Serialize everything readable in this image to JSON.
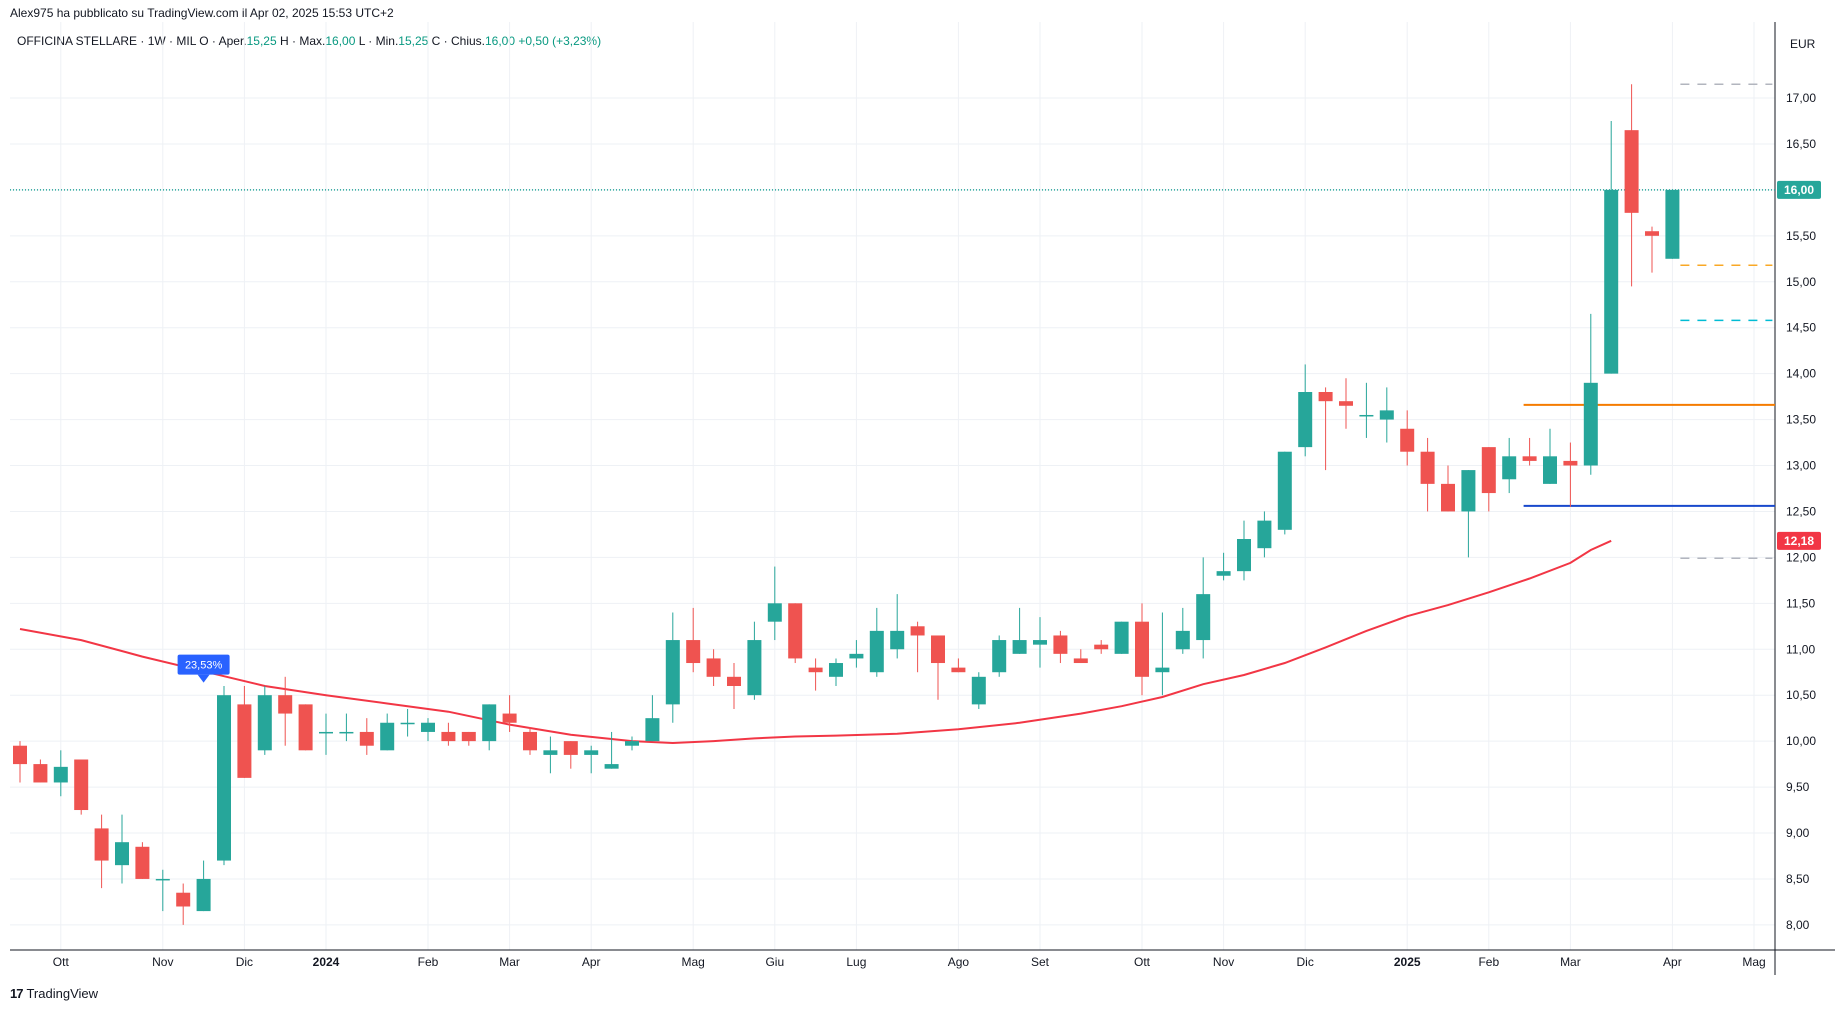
{
  "header": {
    "text": "Alex975 ha pubblicato su TradingView.com il Apr 02, 2025 15:53 UTC+2"
  },
  "legend": {
    "symbol": "OFFICINA STELLARE · 1W · MIL",
    "open_label": "O · Aper.",
    "open": "15,25",
    "high_label": "H · Max.",
    "high": "16,00",
    "low_label": "L · Min.",
    "low": "15,25",
    "close_label": "C · Chius.",
    "close": "16,00",
    "change": "+0,50 (+3,23%)"
  },
  "footer": {
    "logo_icon": "tradingview-logo-icon",
    "logo_text": "TradingView"
  },
  "colors": {
    "up": "#26a69a",
    "down": "#ef5350",
    "ma": "#f23645",
    "grid": "#eef1f5",
    "orange": "#f57c00",
    "blue": "#1848cc",
    "yellow": "#f9a825",
    "cyan": "#00bcd4",
    "gray": "#b2b5be",
    "last_price": "#26a69a",
    "badge": "#2962ff"
  },
  "chart_data": {
    "type": "candlestick",
    "currency": "EUR",
    "timeframe": "1W",
    "ylim": [
      7.85,
      17.55
    ],
    "y_ticks": [
      "8,00",
      "8,50",
      "9,00",
      "9,50",
      "10,00",
      "10,50",
      "11,00",
      "11,50",
      "12,00",
      "12,50",
      "13,00",
      "13,50",
      "14,00",
      "14,50",
      "15,00",
      "15,50",
      "16,00",
      "16,50",
      "17,00"
    ],
    "x_ticks": [
      {
        "label": "Ott",
        "index": 2,
        "bold": false
      },
      {
        "label": "Nov",
        "index": 7,
        "bold": false
      },
      {
        "label": "Dic",
        "index": 11,
        "bold": false
      },
      {
        "label": "2024",
        "index": 15,
        "bold": true
      },
      {
        "label": "Feb",
        "index": 20,
        "bold": false
      },
      {
        "label": "Mar",
        "index": 24,
        "bold": false
      },
      {
        "label": "Apr",
        "index": 28,
        "bold": false
      },
      {
        "label": "Mag",
        "index": 33,
        "bold": false
      },
      {
        "label": "Giu",
        "index": 37,
        "bold": false
      },
      {
        "label": "Lug",
        "index": 41,
        "bold": false
      },
      {
        "label": "Ago",
        "index": 46,
        "bold": false
      },
      {
        "label": "Set",
        "index": 50,
        "bold": false
      },
      {
        "label": "Ott",
        "index": 55,
        "bold": false
      },
      {
        "label": "Nov",
        "index": 59,
        "bold": false
      },
      {
        "label": "Dic",
        "index": 63,
        "bold": false
      },
      {
        "label": "2025",
        "index": 68,
        "bold": true
      },
      {
        "label": "Feb",
        "index": 72,
        "bold": false
      },
      {
        "label": "Mar",
        "index": 76,
        "bold": false
      },
      {
        "label": "Apr",
        "index": 81,
        "bold": false
      },
      {
        "label": "Mag",
        "index": 85,
        "bold": false
      }
    ],
    "candles": [
      {
        "o": 9.95,
        "h": 10.0,
        "l": 9.55,
        "c": 9.75
      },
      {
        "o": 9.75,
        "h": 9.8,
        "l": 9.55,
        "c": 9.55
      },
      {
        "o": 9.55,
        "h": 9.9,
        "l": 9.4,
        "c": 9.72
      },
      {
        "o": 9.8,
        "h": 9.8,
        "l": 9.2,
        "c": 9.25
      },
      {
        "o": 9.05,
        "h": 9.2,
        "l": 8.4,
        "c": 8.7
      },
      {
        "o": 8.65,
        "h": 9.2,
        "l": 8.45,
        "c": 8.9
      },
      {
        "o": 8.85,
        "h": 8.9,
        "l": 8.5,
        "c": 8.5
      },
      {
        "o": 8.5,
        "h": 8.6,
        "l": 8.15,
        "c": 8.5
      },
      {
        "o": 8.35,
        "h": 8.45,
        "l": 8.0,
        "c": 8.2
      },
      {
        "o": 8.15,
        "h": 8.7,
        "l": 8.15,
        "c": 8.5
      },
      {
        "o": 8.7,
        "h": 10.6,
        "l": 8.65,
        "c": 10.5
      },
      {
        "o": 10.4,
        "h": 10.6,
        "l": 9.6,
        "c": 9.6
      },
      {
        "o": 9.9,
        "h": 10.6,
        "l": 9.85,
        "c": 10.5
      },
      {
        "o": 10.5,
        "h": 10.7,
        "l": 9.95,
        "c": 10.3
      },
      {
        "o": 10.4,
        "h": 10.4,
        "l": 9.9,
        "c": 9.9
      },
      {
        "o": 10.1,
        "h": 10.3,
        "l": 9.85,
        "c": 10.1
      },
      {
        "o": 10.1,
        "h": 10.3,
        "l": 10.0,
        "c": 10.1
      },
      {
        "o": 10.1,
        "h": 10.25,
        "l": 9.85,
        "c": 9.95
      },
      {
        "o": 9.9,
        "h": 10.3,
        "l": 9.9,
        "c": 10.2
      },
      {
        "o": 10.2,
        "h": 10.35,
        "l": 10.05,
        "c": 10.2
      },
      {
        "o": 10.1,
        "h": 10.25,
        "l": 10.0,
        "c": 10.2
      },
      {
        "o": 10.1,
        "h": 10.2,
        "l": 9.95,
        "c": 10.0
      },
      {
        "o": 10.1,
        "h": 10.1,
        "l": 9.95,
        "c": 10.0
      },
      {
        "o": 10.0,
        "h": 10.4,
        "l": 9.9,
        "c": 10.4
      },
      {
        "o": 10.3,
        "h": 10.5,
        "l": 10.1,
        "c": 10.2
      },
      {
        "o": 10.1,
        "h": 10.15,
        "l": 9.85,
        "c": 9.9
      },
      {
        "o": 9.85,
        "h": 10.05,
        "l": 9.65,
        "c": 9.9
      },
      {
        "o": 10.0,
        "h": 10.0,
        "l": 9.7,
        "c": 9.85
      },
      {
        "o": 9.85,
        "h": 9.95,
        "l": 9.65,
        "c": 9.9
      },
      {
        "o": 9.7,
        "h": 10.1,
        "l": 9.7,
        "c": 9.75
      },
      {
        "o": 9.95,
        "h": 10.05,
        "l": 9.9,
        "c": 10.0
      },
      {
        "o": 10.0,
        "h": 10.5,
        "l": 10.0,
        "c": 10.25
      },
      {
        "o": 10.4,
        "h": 11.4,
        "l": 10.2,
        "c": 11.1
      },
      {
        "o": 11.1,
        "h": 11.45,
        "l": 10.75,
        "c": 10.85
      },
      {
        "o": 10.9,
        "h": 11.0,
        "l": 10.6,
        "c": 10.7
      },
      {
        "o": 10.7,
        "h": 10.85,
        "l": 10.35,
        "c": 10.6
      },
      {
        "o": 10.5,
        "h": 11.3,
        "l": 10.45,
        "c": 11.1
      },
      {
        "o": 11.3,
        "h": 11.9,
        "l": 11.1,
        "c": 11.5
      },
      {
        "o": 11.5,
        "h": 11.5,
        "l": 10.85,
        "c": 10.9
      },
      {
        "o": 10.8,
        "h": 10.9,
        "l": 10.55,
        "c": 10.75
      },
      {
        "o": 10.7,
        "h": 10.9,
        "l": 10.6,
        "c": 10.85
      },
      {
        "o": 10.9,
        "h": 11.1,
        "l": 10.8,
        "c": 10.95
      },
      {
        "o": 10.75,
        "h": 11.45,
        "l": 10.7,
        "c": 11.2
      },
      {
        "o": 11.0,
        "h": 11.6,
        "l": 10.9,
        "c": 11.2
      },
      {
        "o": 11.25,
        "h": 11.3,
        "l": 10.75,
        "c": 11.15
      },
      {
        "o": 11.15,
        "h": 11.15,
        "l": 10.45,
        "c": 10.85
      },
      {
        "o": 10.8,
        "h": 10.9,
        "l": 10.75,
        "c": 10.75
      },
      {
        "o": 10.4,
        "h": 10.75,
        "l": 10.35,
        "c": 10.7
      },
      {
        "o": 10.75,
        "h": 11.15,
        "l": 10.7,
        "c": 11.1
      },
      {
        "o": 10.95,
        "h": 11.45,
        "l": 10.95,
        "c": 11.1
      },
      {
        "o": 11.05,
        "h": 11.35,
        "l": 10.8,
        "c": 11.1
      },
      {
        "o": 11.15,
        "h": 11.2,
        "l": 10.85,
        "c": 10.95
      },
      {
        "o": 10.9,
        "h": 11.0,
        "l": 10.85,
        "c": 10.85
      },
      {
        "o": 11.05,
        "h": 11.1,
        "l": 10.95,
        "c": 11.0
      },
      {
        "o": 10.95,
        "h": 11.3,
        "l": 10.95,
        "c": 11.3
      },
      {
        "o": 11.3,
        "h": 11.5,
        "l": 10.5,
        "c": 10.7
      },
      {
        "o": 10.75,
        "h": 11.4,
        "l": 10.5,
        "c": 10.8
      },
      {
        "o": 11.0,
        "h": 11.45,
        "l": 10.95,
        "c": 11.2
      },
      {
        "o": 11.1,
        "h": 12.0,
        "l": 10.9,
        "c": 11.6
      },
      {
        "o": 11.8,
        "h": 12.05,
        "l": 11.75,
        "c": 11.85
      },
      {
        "o": 11.85,
        "h": 12.4,
        "l": 11.75,
        "c": 12.2
      },
      {
        "o": 12.1,
        "h": 12.5,
        "l": 12.0,
        "c": 12.4
      },
      {
        "o": 12.3,
        "h": 13.15,
        "l": 12.25,
        "c": 13.15
      },
      {
        "o": 13.2,
        "h": 14.1,
        "l": 13.1,
        "c": 13.8
      },
      {
        "o": 13.8,
        "h": 13.85,
        "l": 12.95,
        "c": 13.7
      },
      {
        "o": 13.7,
        "h": 13.95,
        "l": 13.4,
        "c": 13.65
      },
      {
        "o": 13.55,
        "h": 13.9,
        "l": 13.3,
        "c": 13.55
      },
      {
        "o": 13.5,
        "h": 13.85,
        "l": 13.25,
        "c": 13.6
      },
      {
        "o": 13.4,
        "h": 13.6,
        "l": 13.0,
        "c": 13.15
      },
      {
        "o": 13.15,
        "h": 13.3,
        "l": 12.5,
        "c": 12.8
      },
      {
        "o": 12.8,
        "h": 13.0,
        "l": 12.5,
        "c": 12.5
      },
      {
        "o": 12.5,
        "h": 12.95,
        "l": 12.0,
        "c": 12.95
      },
      {
        "o": 13.2,
        "h": 13.2,
        "l": 12.5,
        "c": 12.7
      },
      {
        "o": 12.85,
        "h": 13.3,
        "l": 12.7,
        "c": 13.1
      },
      {
        "o": 13.1,
        "h": 13.3,
        "l": 13.0,
        "c": 13.05
      },
      {
        "o": 12.8,
        "h": 13.4,
        "l": 12.8,
        "c": 13.1
      },
      {
        "o": 13.05,
        "h": 13.25,
        "l": 12.55,
        "c": 13.0
      },
      {
        "o": 13.0,
        "h": 14.65,
        "l": 12.9,
        "c": 13.9
      },
      {
        "o": 14.0,
        "h": 16.75,
        "l": 14.0,
        "c": 16.0
      },
      {
        "o": 16.65,
        "h": 17.15,
        "l": 14.95,
        "c": 15.75
      },
      {
        "o": 15.55,
        "h": 15.6,
        "l": 15.1,
        "c": 15.5
      },
      {
        "o": 15.25,
        "h": 16.0,
        "l": 15.25,
        "c": 16.0
      }
    ],
    "moving_average": {
      "value_label": "12,18",
      "points": [
        [
          0,
          11.22
        ],
        [
          3,
          11.1
        ],
        [
          6,
          10.92
        ],
        [
          9,
          10.76
        ],
        [
          12,
          10.6
        ],
        [
          15,
          10.5
        ],
        [
          18,
          10.41
        ],
        [
          21,
          10.32
        ],
        [
          24,
          10.18
        ],
        [
          27,
          10.07
        ],
        [
          30,
          10.0
        ],
        [
          32,
          9.98
        ],
        [
          34,
          10.0
        ],
        [
          36,
          10.03
        ],
        [
          38,
          10.05
        ],
        [
          40,
          10.06
        ],
        [
          43,
          10.08
        ],
        [
          46,
          10.13
        ],
        [
          49,
          10.2
        ],
        [
          52,
          10.3
        ],
        [
          54,
          10.38
        ],
        [
          56,
          10.48
        ],
        [
          58,
          10.62
        ],
        [
          60,
          10.72
        ],
        [
          62,
          10.85
        ],
        [
          64,
          11.02
        ],
        [
          66,
          11.2
        ],
        [
          68,
          11.36
        ],
        [
          70,
          11.48
        ],
        [
          72,
          11.62
        ],
        [
          74,
          11.77
        ],
        [
          76,
          11.94
        ],
        [
          77,
          12.08
        ],
        [
          78,
          12.18
        ]
      ]
    },
    "levels": [
      {
        "value": 16.0,
        "label": "16,00",
        "style": "dotted",
        "color_key": "last_price"
      },
      {
        "value": 13.66,
        "style": "solid",
        "color_key": "orange",
        "from_index": 74
      },
      {
        "value": 12.56,
        "style": "solid",
        "color_key": "blue",
        "from_index": 74
      },
      {
        "value": 17.15,
        "style": "dashed",
        "color_key": "gray",
        "from_index": 79
      },
      {
        "value": 15.18,
        "style": "dashed",
        "color_key": "yellow",
        "from_index": 79
      },
      {
        "value": 14.58,
        "style": "dashed",
        "color_key": "cyan",
        "from_index": 79
      },
      {
        "value": 11.99,
        "style": "dashed",
        "color_key": "gray",
        "from_index": 79
      }
    ],
    "annotation": {
      "label": "23,53%",
      "index": 9,
      "value": 10.55
    }
  }
}
